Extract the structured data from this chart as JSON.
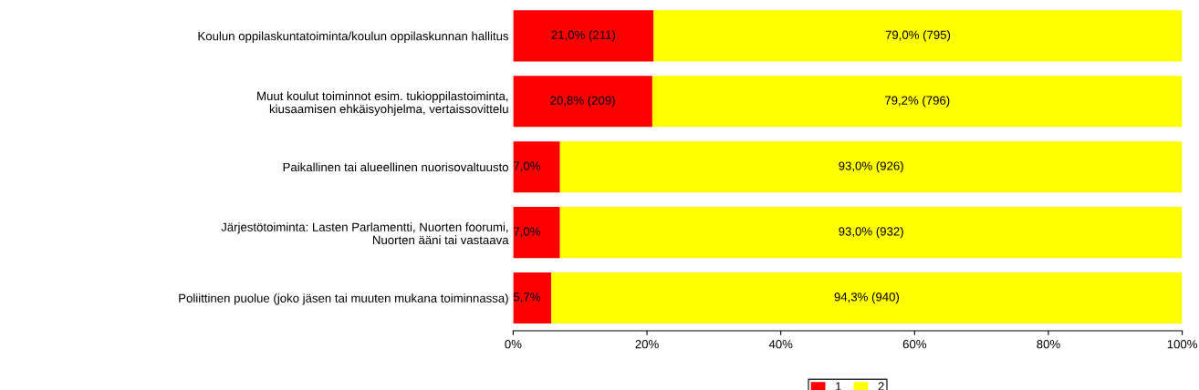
{
  "chart_data": {
    "type": "bar",
    "orientation": "horizontal",
    "stacked": true,
    "categories": [
      "Koulun oppilaskuntatoiminta/koulun oppilaskunnan hallitus",
      "Muut koulut toiminnot esim. tukioppilastoiminta,\nkiusaamisen ehkäisyohjelma, vertaissovittelu",
      "Paikallinen tai alueellinen nuorisovaltuusto",
      "Järjestötoiminta: Lasten Parlamentti, Nuorten foorumi,\nNuorten ääni tai vastaava",
      "Poliittinen puolue (joko jäsen tai muuten mukana toiminnassa)"
    ],
    "series": [
      {
        "name": "1",
        "color": "#ff0000",
        "values": [
          21.0,
          20.8,
          7.0,
          7.0,
          5.7
        ],
        "value_labels": [
          "21,0% (211)",
          "20,8% (209)",
          "7,0%",
          "7,0%",
          "5,7%"
        ]
      },
      {
        "name": "2",
        "color": "#ffff00",
        "values": [
          79.0,
          79.2,
          93.0,
          93.0,
          94.3
        ],
        "value_labels": [
          "79,0% (795)",
          "79,2% (796)",
          "93,0% (926)",
          "93,0% (932)",
          "94,3% (940)"
        ]
      }
    ],
    "xlim": [
      0,
      100
    ],
    "xticks": [
      {
        "value": 0,
        "label": "0%"
      },
      {
        "value": 20,
        "label": "20%"
      },
      {
        "value": 40,
        "label": "40%"
      },
      {
        "value": 60,
        "label": "60%"
      },
      {
        "value": 80,
        "label": "80%"
      },
      {
        "value": 100,
        "label": "100%"
      }
    ],
    "grid": false,
    "legend": "bottom"
  }
}
